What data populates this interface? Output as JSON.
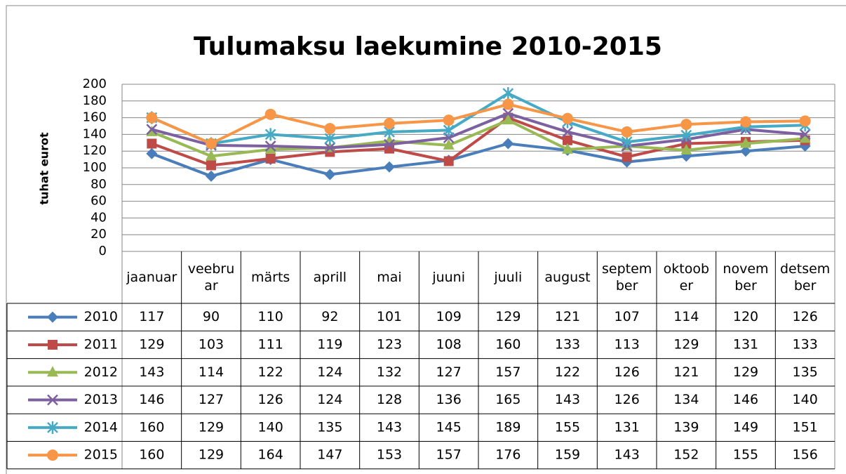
{
  "chart_data": {
    "type": "line",
    "title": "Tulumaksu laekumine 2010-2015",
    "y_label": "tuhat eurot",
    "categories": [
      "jaanuar",
      "veebruar",
      "märts",
      "aprill",
      "mai",
      "juuni",
      "juuli",
      "august",
      "september",
      "oktoober",
      "november",
      "detsember"
    ],
    "ylim": [
      0,
      200
    ],
    "yticks": [
      0,
      20,
      40,
      60,
      80,
      100,
      120,
      140,
      160,
      180,
      200
    ],
    "grid": true,
    "data_table": true,
    "series": [
      {
        "name": "2010",
        "color": "#4a7ebb",
        "marker": "diamond",
        "values": [
          117,
          90,
          110,
          92,
          101,
          109,
          129,
          121,
          107,
          114,
          120,
          126
        ]
      },
      {
        "name": "2011",
        "color": "#be4b48",
        "marker": "square",
        "values": [
          129,
          103,
          111,
          119,
          123,
          108,
          160,
          133,
          113,
          129,
          131,
          133
        ]
      },
      {
        "name": "2012",
        "color": "#98b954",
        "marker": "triangle",
        "values": [
          143,
          114,
          122,
          124,
          132,
          127,
          157,
          122,
          126,
          121,
          129,
          135
        ]
      },
      {
        "name": "2013",
        "color": "#7d60a0",
        "marker": "x",
        "values": [
          146,
          127,
          126,
          124,
          128,
          136,
          165,
          143,
          126,
          134,
          146,
          140
        ]
      },
      {
        "name": "2014",
        "color": "#46aac5",
        "marker": "star",
        "values": [
          160,
          129,
          140,
          135,
          143,
          145,
          189,
          155,
          131,
          139,
          149,
          151
        ]
      },
      {
        "name": "2015",
        "color": "#f79646",
        "marker": "circle",
        "values": [
          160,
          129,
          164,
          147,
          153,
          157,
          176,
          159,
          143,
          152,
          155,
          156
        ]
      }
    ]
  }
}
